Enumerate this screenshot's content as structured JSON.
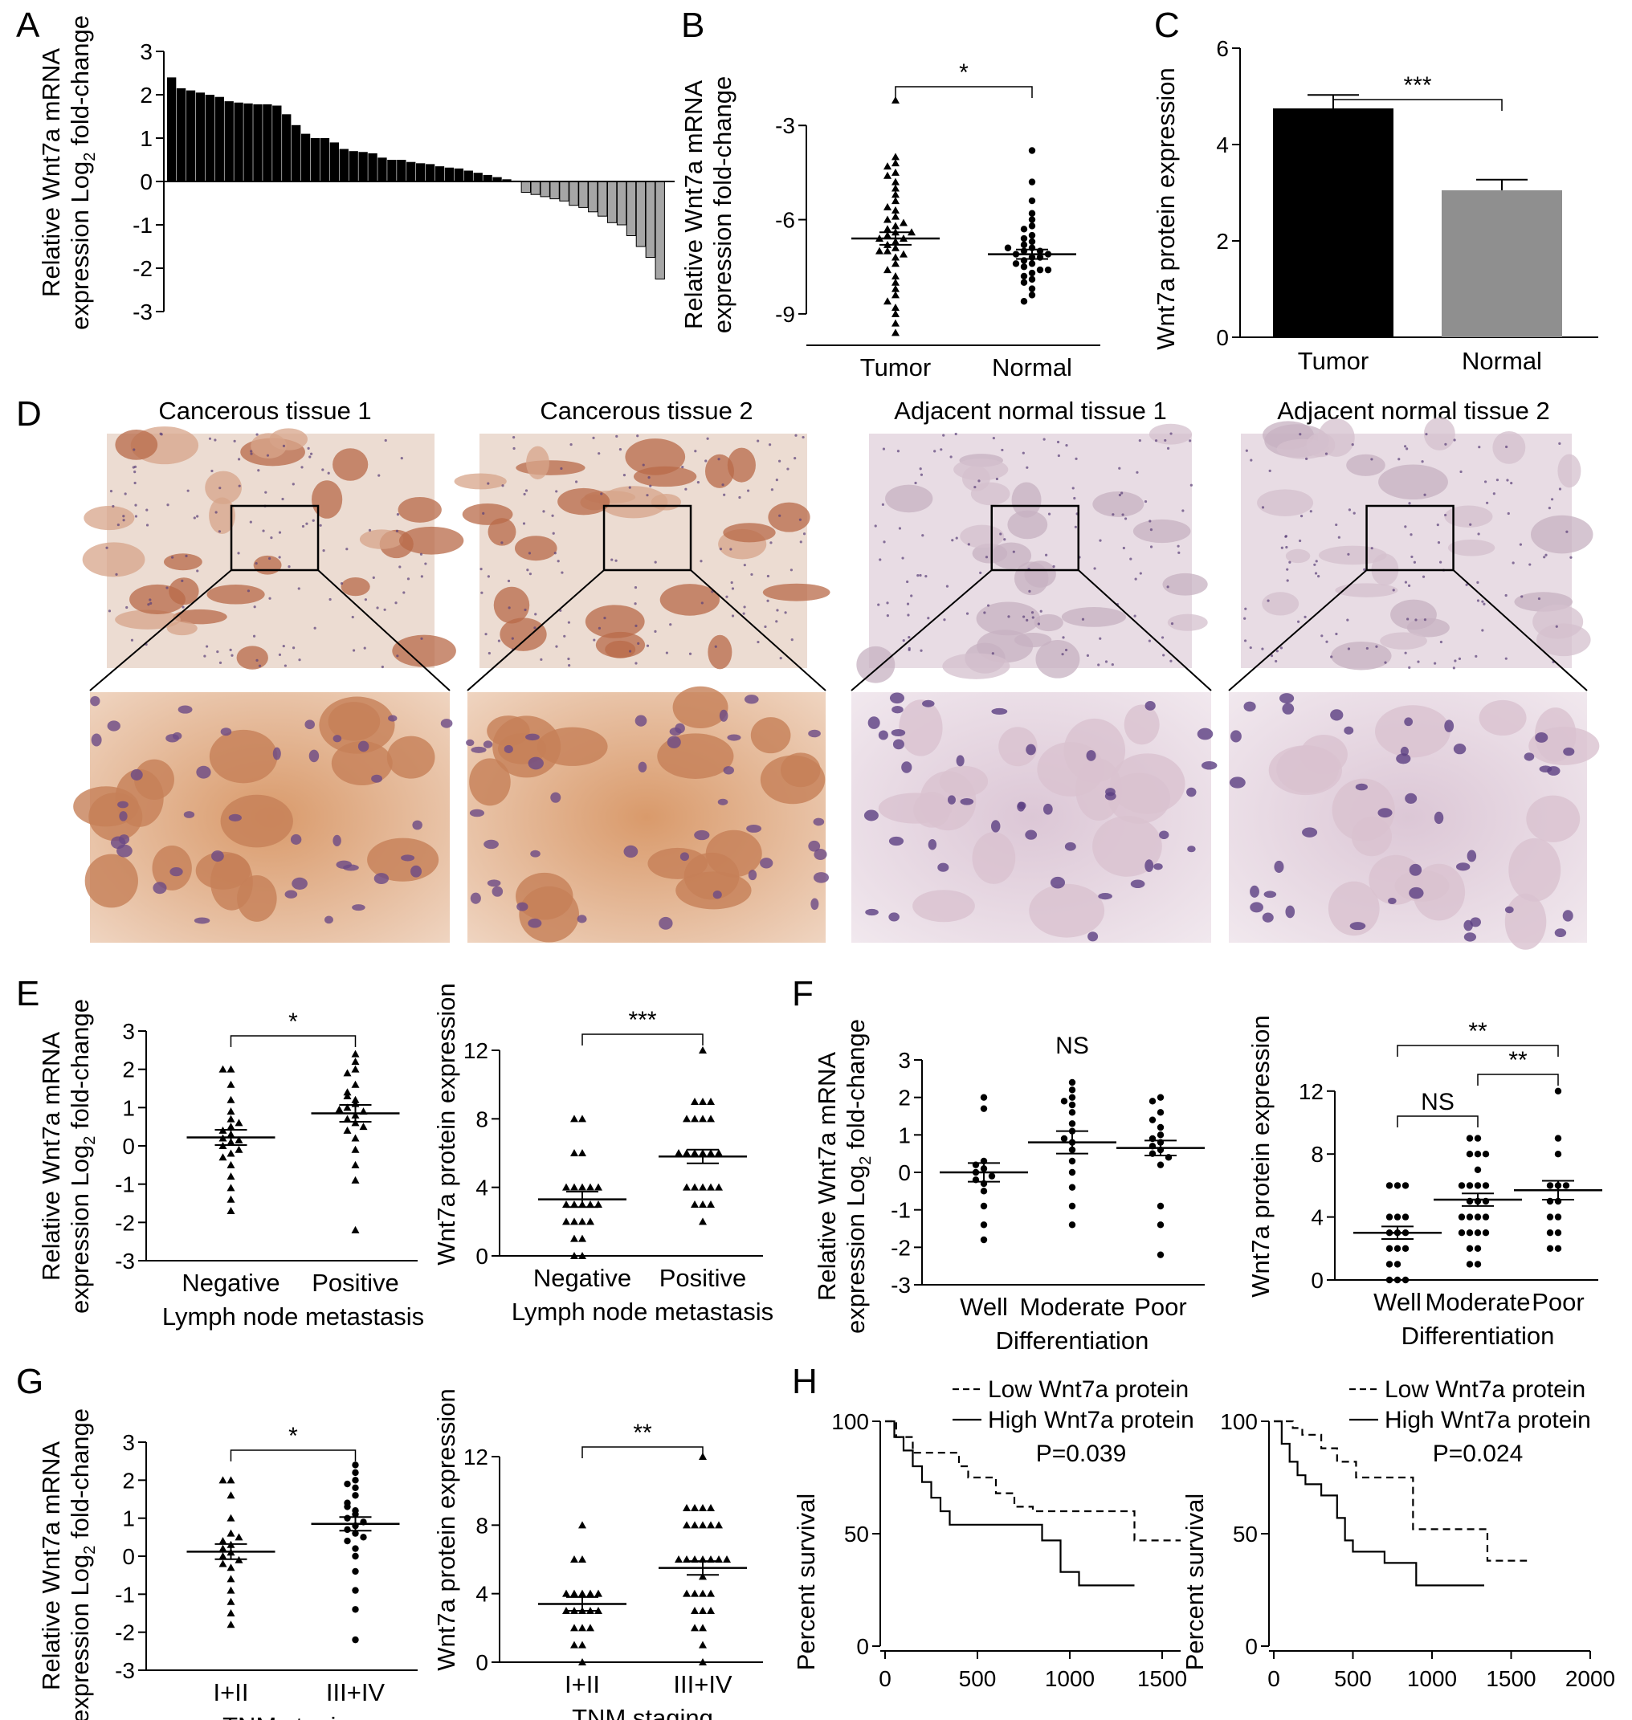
{
  "panel_labels": {
    "A": "A",
    "B": "B",
    "C": "C",
    "D": "D",
    "E": "E",
    "F": "F",
    "G": "G",
    "H": "H"
  },
  "colors": {
    "tumor": "#000000",
    "normal": "#8f8f8f",
    "bar_gray": "#a6a6a6",
    "stain_brown": "#b86a48",
    "stain_purple": "#8f6aa0"
  },
  "chart_data": [
    {
      "panel": "A",
      "type": "bar",
      "ylabel_line1": "Relative Wnt7a mRNA",
      "ylabel_line2_pre": "expression Log",
      "ylabel_sub": "2",
      "ylabel_line2_post": " fold-change",
      "ylim": [
        -3,
        3
      ],
      "yticks": [
        3,
        2,
        1,
        0,
        -1,
        -2,
        -3
      ],
      "values": [
        2.4,
        2.15,
        2.1,
        2.05,
        2.0,
        1.95,
        1.85,
        1.82,
        1.8,
        1.78,
        1.78,
        1.75,
        1.55,
        1.3,
        1.1,
        1.0,
        1.0,
        0.9,
        0.75,
        0.7,
        0.68,
        0.65,
        0.55,
        0.5,
        0.5,
        0.45,
        0.42,
        0.4,
        0.35,
        0.32,
        0.3,
        0.25,
        0.2,
        0.15,
        0.1,
        0.05,
        0.02,
        -0.25,
        -0.3,
        -0.35,
        -0.4,
        -0.45,
        -0.55,
        -0.6,
        -0.7,
        -0.8,
        -0.95,
        -1.0,
        -1.25,
        -1.5,
        -1.75,
        -2.25
      ]
    },
    {
      "panel": "B",
      "type": "scatter",
      "ylabel_line1": "Relative Wnt7a mRNA",
      "ylabel_line2": "expression fold-change",
      "categories": [
        "Tumor",
        "Normal"
      ],
      "ylim": [
        -10,
        -1
      ],
      "yticks": [
        -3,
        -6,
        -9
      ],
      "means": [
        -6.6,
        -7.1
      ],
      "sems": [
        0.2,
        0.15
      ],
      "significance": "*",
      "series": [
        {
          "values": [
            -2.2,
            -4.0,
            -4.2,
            -4.3,
            -4.5,
            -4.6,
            -4.8,
            -5.0,
            -5.2,
            -5.4,
            -5.6,
            -5.7,
            -5.9,
            -6.0,
            -6.1,
            -6.2,
            -6.3,
            -6.4,
            -6.5,
            -6.6,
            -6.7,
            -6.8,
            -6.9,
            -7.0,
            -7.1,
            -7.2,
            -7.4,
            -7.6,
            -7.8,
            -8.0,
            -8.2,
            -8.4,
            -8.6,
            -8.8,
            -9.0,
            -9.3,
            -9.6,
            -6.6,
            -6.4,
            -7.0
          ]
        },
        {
          "values": [
            -3.8,
            -4.8,
            -5.4,
            -5.8,
            -6.0,
            -6.2,
            -6.3,
            -6.5,
            -6.6,
            -6.7,
            -6.8,
            -6.9,
            -7.0,
            -7.0,
            -7.1,
            -7.1,
            -7.2,
            -7.3,
            -7.4,
            -7.5,
            -7.6,
            -7.7,
            -7.8,
            -7.9,
            -8.0,
            -8.2,
            -8.4,
            -8.6,
            -6.9,
            -7.2,
            -7.4,
            -7.6
          ]
        }
      ]
    },
    {
      "panel": "C",
      "type": "bar",
      "ylabel": "Wnt7a protein expression",
      "categories": [
        "Tumor",
        "Normal"
      ],
      "values": [
        4.75,
        3.05
      ],
      "errors": [
        0.28,
        0.22
      ],
      "ylim": [
        0,
        6
      ],
      "yticks": [
        0,
        2,
        4,
        6
      ],
      "significance": "***"
    },
    {
      "panel": "E1",
      "type": "scatter",
      "ylabel_line1": "Relative Wnt7a mRNA",
      "ylabel_line2_pre": "expression Log",
      "ylabel_sub": "2",
      "ylabel_line2_post": " fold-change",
      "categories": [
        "Negative",
        "Positive"
      ],
      "xlabel": "Lymph node metastasis",
      "ylim": [
        -3,
        3
      ],
      "yticks": [
        3,
        2,
        1,
        0,
        -1,
        -2,
        -3
      ],
      "means": [
        0.22,
        0.85
      ],
      "sems": [
        0.2,
        0.22
      ],
      "significance": "*",
      "series": [
        {
          "values": [
            2.0,
            2.0,
            1.6,
            1.2,
            0.9,
            0.7,
            0.5,
            0.4,
            0.3,
            0.2,
            0.1,
            0.0,
            -0.1,
            -0.2,
            -0.5,
            -0.8,
            -1.1,
            -1.4,
            -1.7,
            0.6,
            0.15,
            -0.3
          ]
        },
        {
          "values": [
            2.4,
            2.2,
            2.0,
            1.9,
            1.6,
            1.4,
            1.2,
            1.1,
            1.0,
            0.9,
            0.8,
            0.7,
            0.6,
            0.4,
            0.2,
            -0.1,
            -0.5,
            -0.9,
            -2.2,
            1.3,
            0.95,
            0.5
          ]
        }
      ]
    },
    {
      "panel": "E2",
      "type": "scatter",
      "ylabel": "Wnt7a  protein expression",
      "categories": [
        "Negative",
        "Positive"
      ],
      "xlabel": "Lymph node metastasis",
      "ylim": [
        0,
        12
      ],
      "yticks": [
        0,
        4,
        8,
        12
      ],
      "means": [
        3.3,
        5.8
      ],
      "sems": [
        0.45,
        0.4
      ],
      "significance": "***",
      "series": [
        {
          "values": [
            8,
            8,
            6,
            6,
            4,
            4,
            4,
            4,
            3,
            3,
            3,
            3,
            2,
            2,
            2,
            1,
            1,
            0,
            0,
            4,
            3,
            2
          ]
        },
        {
          "values": [
            12,
            9,
            9,
            9,
            8,
            8,
            8,
            8,
            6,
            6,
            6,
            6,
            6,
            4,
            4,
            4,
            4,
            3,
            3,
            3,
            2,
            6,
            4
          ]
        }
      ]
    },
    {
      "panel": "F1",
      "type": "scatter",
      "ylabel_line1": "Relative Wnt7a mRNA",
      "ylabel_line2_pre": "expression Log",
      "ylabel_sub": "2",
      "ylabel_line2_post": " fold-change",
      "categories": [
        "Well",
        "Moderate",
        "Poor"
      ],
      "xlabel": "Differentiation",
      "ylim": [
        -3,
        3
      ],
      "yticks": [
        3,
        2,
        1,
        0,
        -1,
        -2,
        -3
      ],
      "means": [
        0.0,
        0.8,
        0.65
      ],
      "sems": [
        0.25,
        0.3,
        0.2
      ],
      "significance": "NS",
      "series": [
        {
          "values": [
            2.0,
            1.7,
            0.3,
            0.1,
            0.0,
            -0.1,
            -0.3,
            -0.5,
            -0.9,
            -1.4,
            -1.8,
            0.2,
            -0.2
          ]
        },
        {
          "values": [
            2.4,
            2.2,
            2.0,
            1.9,
            1.6,
            1.3,
            1.1,
            0.9,
            0.6,
            0.3,
            0.0,
            -0.4,
            -0.9,
            -1.4,
            0.8,
            1.8
          ]
        },
        {
          "values": [
            2.0,
            1.9,
            1.6,
            1.4,
            1.2,
            1.0,
            0.8,
            0.7,
            0.6,
            0.5,
            0.4,
            0.2,
            -0.9,
            -1.4,
            -2.2,
            0.9
          ]
        }
      ]
    },
    {
      "panel": "F2",
      "type": "scatter",
      "ylabel": "Wnt7a protein expression",
      "categories": [
        "Well",
        "Moderate",
        "Poor"
      ],
      "xlabel": "Differentiation",
      "ylim": [
        0,
        15
      ],
      "yticks": [
        0,
        4,
        8,
        12
      ],
      "means": [
        3.0,
        5.1,
        5.7
      ],
      "sems": [
        0.4,
        0.4,
        0.6
      ],
      "sig_labels": [
        {
          "pair": [
            0,
            2
          ],
          "label": "**"
        },
        {
          "pair": [
            1,
            2
          ],
          "label": "**"
        },
        {
          "pair": [
            0,
            1
          ],
          "label": "NS"
        }
      ],
      "series": [
        {
          "values": [
            6,
            6,
            6,
            4,
            4,
            4,
            3,
            3,
            3,
            2,
            2,
            2,
            1,
            1,
            0,
            0,
            0
          ]
        },
        {
          "values": [
            9,
            9,
            8,
            8,
            8,
            7,
            6,
            6,
            6,
            5,
            5,
            4,
            4,
            4,
            4,
            3,
            3,
            3,
            2,
            2,
            1,
            1,
            6,
            5,
            3
          ]
        },
        {
          "values": [
            12,
            9,
            8,
            6,
            6,
            6,
            5,
            5,
            4,
            4,
            3,
            3,
            2,
            2
          ]
        }
      ]
    },
    {
      "panel": "G1",
      "type": "scatter",
      "ylabel_line1": "Relative Wnt7a mRNA",
      "ylabel_line2_pre": "expression Log",
      "ylabel_sub": "2",
      "ylabel_line2_post": " fold-change",
      "categories": [
        "I+II",
        "III+IV"
      ],
      "xlabel": "TNM staging",
      "ylim": [
        -3,
        3
      ],
      "yticks": [
        3,
        2,
        1,
        0,
        -1,
        -2,
        -3
      ],
      "means": [
        0.12,
        0.85
      ],
      "sems": [
        0.2,
        0.18
      ],
      "significance": "*",
      "series": [
        {
          "values": [
            2.0,
            2.0,
            1.6,
            1.0,
            0.6,
            0.4,
            0.3,
            0.2,
            0.1,
            0.0,
            -0.1,
            -0.3,
            -0.6,
            -0.9,
            -1.2,
            -1.5,
            -1.8,
            0.5,
            -0.2
          ]
        },
        {
          "values": [
            2.4,
            2.2,
            2.0,
            1.9,
            1.8,
            1.6,
            1.4,
            1.2,
            1.1,
            1.0,
            0.9,
            0.8,
            0.7,
            0.6,
            0.4,
            0.2,
            0.0,
            -0.4,
            -0.9,
            -1.4,
            -2.2,
            1.3,
            0.5
          ]
        }
      ]
    },
    {
      "panel": "G2",
      "type": "scatter",
      "ylabel": "Wnt7a  protein expression",
      "categories": [
        "I+II",
        "III+IV"
      ],
      "xlabel": "TNM staging",
      "ylim": [
        0,
        12
      ],
      "yticks": [
        0,
        4,
        8,
        12
      ],
      "means": [
        3.4,
        5.5
      ],
      "sems": [
        0.4,
        0.4
      ],
      "significance": "**",
      "series": [
        {
          "values": [
            8,
            6,
            6,
            4,
            4,
            4,
            4,
            3,
            3,
            3,
            3,
            2,
            2,
            2,
            1,
            1,
            0,
            3,
            4
          ]
        },
        {
          "values": [
            12,
            9,
            9,
            9,
            9,
            8,
            8,
            8,
            8,
            8,
            6,
            6,
            6,
            6,
            6,
            6,
            4,
            4,
            4,
            4,
            3,
            3,
            3,
            2,
            2,
            1,
            0,
            5,
            6
          ]
        }
      ]
    },
    {
      "panel": "H1",
      "type": "line",
      "ylabel": "Percent survival",
      "xlim": [
        0,
        1600
      ],
      "xticks": [
        0,
        500,
        1000,
        1500
      ],
      "ylim": [
        0,
        100
      ],
      "yticks": [
        0,
        50,
        100
      ],
      "p_value": "P=0.039",
      "series": [
        {
          "name": "Low Wnt7a protein",
          "x": [
            0,
            60,
            150,
            300,
            400,
            450,
            600,
            700,
            800,
            1350,
            1600
          ],
          "y": [
            100,
            93,
            86,
            86,
            80,
            75,
            68,
            62,
            60,
            47,
            47
          ]
        },
        {
          "name": "High Wnt7a protein",
          "x": [
            0,
            50,
            100,
            150,
            200,
            250,
            300,
            350,
            700,
            850,
            950,
            1050,
            1350
          ],
          "y": [
            100,
            93,
            87,
            80,
            73,
            66,
            60,
            54,
            54,
            47,
            33,
            27,
            27
          ]
        }
      ]
    },
    {
      "panel": "H2",
      "type": "line",
      "ylabel": "Percent survival",
      "xlim": [
        0,
        2000
      ],
      "xticks": [
        0,
        500,
        1000,
        1500,
        2000
      ],
      "ylim": [
        0,
        100
      ],
      "yticks": [
        0,
        50,
        100
      ],
      "p_value": "P=0.024",
      "series": [
        {
          "name": "Low Wnt7a protein",
          "x": [
            0,
            120,
            180,
            300,
            400,
            520,
            880,
            1000,
            1350,
            1600
          ],
          "y": [
            100,
            97,
            94,
            88,
            82,
            75,
            52,
            52,
            38,
            38
          ]
        },
        {
          "name": "High Wnt7a protein",
          "x": [
            0,
            50,
            100,
            150,
            200,
            300,
            400,
            450,
            500,
            700,
            900,
            1330
          ],
          "y": [
            100,
            90,
            82,
            76,
            72,
            67,
            57,
            47,
            42,
            37,
            27,
            27
          ]
        }
      ]
    }
  ],
  "micrographs": {
    "titles": [
      "Cancerous tissue 1",
      "Cancerous tissue 2",
      "Adjacent normal tissue 1",
      "Adjacent normal tissue 2"
    ],
    "stain": [
      "brown",
      "brown",
      "purple",
      "purple"
    ]
  }
}
